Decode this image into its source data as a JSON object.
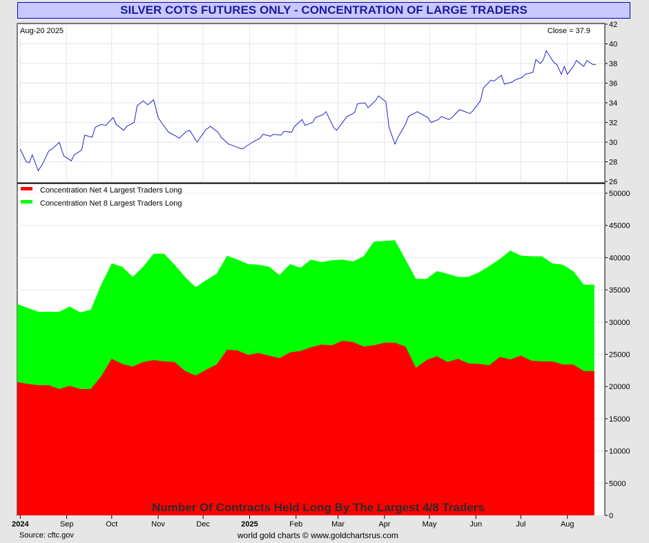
{
  "title": "SILVER COTS FUTURES ONLY - CONCENTRATION OF LARGE TRADERS",
  "footer": {
    "source": "Source: cftc.gov",
    "credit": "world gold charts © www.goldchartsrus.com"
  },
  "colors": {
    "price_line": "#2020cc",
    "net4": "#ff0000",
    "net8": "#00ff00",
    "title_bg": "#c8c8ff",
    "title_text": "#1a1aa0"
  },
  "chart_data": [
    {
      "type": "line",
      "date_label": "Aug-20  2025",
      "close_label": "Close = 37.9",
      "ylim": [
        26,
        42
      ],
      "yticks": [
        26,
        28,
        30,
        32,
        34,
        36,
        38,
        40,
        42
      ],
      "x": [
        "2024-08-01",
        "2024-08-05",
        "2024-08-07",
        "2024-08-09",
        "2024-08-13",
        "2024-08-16",
        "2024-08-20",
        "2024-08-23",
        "2024-08-27",
        "2024-08-30",
        "2024-09-04",
        "2024-09-06",
        "2024-09-11",
        "2024-09-13",
        "2024-09-18",
        "2024-09-20",
        "2024-09-24",
        "2024-09-27",
        "2024-10-02",
        "2024-10-04",
        "2024-10-09",
        "2024-10-11",
        "2024-10-16",
        "2024-10-18",
        "2024-10-22",
        "2024-10-25",
        "2024-10-29",
        "2024-11-01",
        "2024-11-06",
        "2024-11-08",
        "2024-11-13",
        "2024-11-15",
        "2024-11-20",
        "2024-11-22",
        "2024-11-27",
        "2024-12-03",
        "2024-12-06",
        "2024-12-11",
        "2024-12-13",
        "2024-12-18",
        "2024-12-20",
        "2024-12-27",
        "2025-01-03",
        "2025-01-08",
        "2025-01-10",
        "2025-01-15",
        "2025-01-17",
        "2025-01-22",
        "2025-01-24",
        "2025-01-29",
        "2025-01-31",
        "2025-02-05",
        "2025-02-07",
        "2025-02-12",
        "2025-02-14",
        "2025-02-19",
        "2025-02-21",
        "2025-02-26",
        "2025-02-28",
        "2025-03-05",
        "2025-03-07",
        "2025-03-12",
        "2025-03-14",
        "2025-03-19",
        "2025-03-21",
        "2025-03-26",
        "2025-03-28",
        "2025-04-02",
        "2025-04-04",
        "2025-04-08",
        "2025-04-10",
        "2025-04-15",
        "2025-04-17",
        "2025-04-23",
        "2025-04-25",
        "2025-04-30",
        "2025-05-02",
        "2025-05-07",
        "2025-05-09",
        "2025-05-14",
        "2025-05-16",
        "2025-05-21",
        "2025-05-23",
        "2025-05-28",
        "2025-05-30",
        "2025-06-04",
        "2025-06-06",
        "2025-06-11",
        "2025-06-13",
        "2025-06-18",
        "2025-06-20",
        "2025-06-25",
        "2025-06-27",
        "2025-07-02",
        "2025-07-04",
        "2025-07-09",
        "2025-07-11",
        "2025-07-14",
        "2025-07-16",
        "2025-07-18",
        "2025-07-23",
        "2025-07-25",
        "2025-07-28",
        "2025-07-30",
        "2025-08-01",
        "2025-08-05",
        "2025-08-07",
        "2025-08-12",
        "2025-08-14",
        "2025-08-18",
        "2025-08-20"
      ],
      "values": [
        29.3,
        28.0,
        27.9,
        28.7,
        27.1,
        27.8,
        29.1,
        29.4,
        30.0,
        28.6,
        28.1,
        28.7,
        29.2,
        30.7,
        30.5,
        31.5,
        31.8,
        31.7,
        32.5,
        31.8,
        31.2,
        31.6,
        32.0,
        33.7,
        34.2,
        33.8,
        34.3,
        32.5,
        31.4,
        31.0,
        30.6,
        30.4,
        31.1,
        31.2,
        30.0,
        31.3,
        31.6,
        31.0,
        30.5,
        29.8,
        29.7,
        29.3,
        30.0,
        30.4,
        30.8,
        30.6,
        30.8,
        30.7,
        31.1,
        31.0,
        31.6,
        32.3,
        31.7,
        32.0,
        32.5,
        32.8,
        33.1,
        31.5,
        31.2,
        32.2,
        32.6,
        33.0,
        33.9,
        34.0,
        33.5,
        34.2,
        34.7,
        34.1,
        31.5,
        29.8,
        30.5,
        31.8,
        32.6,
        33.1,
        32.9,
        32.5,
        32.0,
        32.3,
        32.6,
        32.3,
        32.5,
        33.3,
        33.2,
        32.9,
        33.2,
        34.2,
        35.5,
        36.3,
        36.2,
        36.8,
        35.9,
        36.1,
        36.3,
        36.6,
        36.9,
        37.1,
        38.4,
        38.0,
        38.4,
        39.3,
        38.1,
        37.9,
        36.9,
        37.7,
        36.9,
        37.7,
        38.3,
        37.7,
        38.3,
        37.9,
        37.9
      ]
    },
    {
      "type": "area",
      "title": "Number Of Contracts Held Long By The Largest 4/8 Traders",
      "ylim": [
        0,
        50000
      ],
      "yticks": [
        0,
        5000,
        10000,
        15000,
        20000,
        25000,
        30000,
        35000,
        40000,
        45000,
        50000
      ],
      "xlim": [
        "2024-07-30",
        "2025-08-26"
      ],
      "x_tick_labels": [
        {
          "date": "2024-08-01",
          "label": "2024",
          "bold": true
        },
        {
          "date": "2024-09-01",
          "label": "Sep"
        },
        {
          "date": "2024-10-01",
          "label": "Oct"
        },
        {
          "date": "2024-11-01",
          "label": "Nov"
        },
        {
          "date": "2024-12-01",
          "label": "Dec"
        },
        {
          "date": "2025-01-01",
          "label": "2025",
          "bold": true
        },
        {
          "date": "2025-02-01",
          "label": "Feb"
        },
        {
          "date": "2025-03-01",
          "label": "Mar"
        },
        {
          "date": "2025-04-01",
          "label": "Apr"
        },
        {
          "date": "2025-05-01",
          "label": "May"
        },
        {
          "date": "2025-06-01",
          "label": "Jun"
        },
        {
          "date": "2025-07-01",
          "label": "Jul"
        },
        {
          "date": "2025-08-01",
          "label": "Aug"
        }
      ],
      "x": [
        "2024-07-30",
        "2024-08-06",
        "2024-08-13",
        "2024-08-20",
        "2024-08-27",
        "2024-09-03",
        "2024-09-10",
        "2024-09-17",
        "2024-09-24",
        "2024-10-01",
        "2024-10-08",
        "2024-10-15",
        "2024-10-22",
        "2024-10-29",
        "2024-11-05",
        "2024-11-12",
        "2024-11-19",
        "2024-11-26",
        "2024-12-03",
        "2024-12-10",
        "2024-12-17",
        "2024-12-24",
        "2024-12-31",
        "2025-01-07",
        "2025-01-14",
        "2025-01-21",
        "2025-01-28",
        "2025-02-04",
        "2025-02-11",
        "2025-02-18",
        "2025-02-25",
        "2025-03-04",
        "2025-03-11",
        "2025-03-18",
        "2025-03-25",
        "2025-04-01",
        "2025-04-08",
        "2025-04-15",
        "2025-04-22",
        "2025-04-29",
        "2025-05-06",
        "2025-05-13",
        "2025-05-20",
        "2025-05-27",
        "2025-06-03",
        "2025-06-10",
        "2025-06-17",
        "2025-06-24",
        "2025-07-01",
        "2025-07-08",
        "2025-07-15",
        "2025-07-22",
        "2025-07-29",
        "2025-08-05",
        "2025-08-12",
        "2025-08-19"
      ],
      "series": [
        {
          "name": "Concentration Net 4 Largest Traders Long",
          "color": "#ff0000",
          "values": [
            20700,
            20400,
            20200,
            20200,
            19600,
            20100,
            19600,
            19600,
            21600,
            24300,
            23500,
            23100,
            23800,
            24100,
            23900,
            23800,
            22400,
            21700,
            22600,
            23400,
            25700,
            25600,
            24900,
            25200,
            24800,
            24400,
            25300,
            25500,
            26100,
            26500,
            26400,
            27100,
            26900,
            26200,
            26400,
            26800,
            26800,
            26200,
            22900,
            24100,
            24700,
            23800,
            24300,
            23600,
            23500,
            23300,
            24600,
            24200,
            24800,
            24000,
            23900,
            23900,
            23400,
            23400,
            22400,
            22400
          ]
        },
        {
          "name": "Concentration Net 8 Largest Traders Long",
          "color": "#00ff00",
          "values": [
            32800,
            32200,
            31600,
            31600,
            31600,
            32400,
            31500,
            31900,
            35800,
            39100,
            38600,
            37000,
            38600,
            40600,
            40600,
            38900,
            37000,
            35400,
            36500,
            37500,
            40300,
            39700,
            39000,
            38900,
            38600,
            37300,
            39000,
            38400,
            39700,
            39300,
            39600,
            39700,
            39400,
            40200,
            42500,
            42600,
            42700,
            39700,
            36700,
            36700,
            37900,
            37500,
            37000,
            37000,
            37700,
            38700,
            39800,
            41100,
            40300,
            40200,
            40200,
            39100,
            38900,
            37900,
            35800,
            35800
          ]
        }
      ]
    }
  ]
}
